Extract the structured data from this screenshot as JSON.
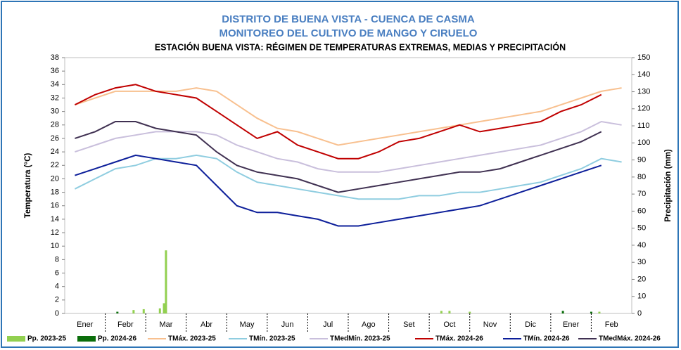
{
  "chart_data": {
    "type": "line",
    "title": "DISTRITO DE BUENA VISTA - CUENCA DE CASMA",
    "subtitle": "MONITOREO DEL CULTIVO DE MANGO Y CIRUELO",
    "subtitle2": "ESTACIÓN BUENA VISTA: RÉGIMEN DE TEMPERATURAS EXTREMAS, MEDIAS Y PRECIPITACIÓN",
    "ylabel": "Temperatura (°C)",
    "y2label": "Precipitación (mm)",
    "ylim": [
      0,
      38
    ],
    "yticks": [
      0,
      2,
      4,
      6,
      8,
      10,
      12,
      14,
      16,
      18,
      20,
      22,
      24,
      26,
      28,
      30,
      32,
      34,
      36,
      38
    ],
    "y2lim": [
      0,
      150
    ],
    "y2ticks": [
      0,
      10,
      20,
      30,
      40,
      50,
      60,
      70,
      80,
      90,
      100,
      110,
      120,
      130,
      140,
      150
    ],
    "xlim": [
      0,
      14
    ],
    "xticks": [
      {
        "value": 0.5,
        "label": "Ener"
      },
      {
        "value": 1.5,
        "label": "Febr"
      },
      {
        "value": 2.5,
        "label": "Mar"
      },
      {
        "value": 3.5,
        "label": "Abr"
      },
      {
        "value": 4.5,
        "label": "May"
      },
      {
        "value": 5.5,
        "label": "Jun"
      },
      {
        "value": 6.5,
        "label": "Jul"
      },
      {
        "value": 7.5,
        "label": "Ago"
      },
      {
        "value": 8.5,
        "label": "Set"
      },
      {
        "value": 9.5,
        "label": "Oct"
      },
      {
        "value": 10.5,
        "label": "Nov"
      },
      {
        "value": 11.5,
        "label": "Dic"
      },
      {
        "value": 12.5,
        "label": "Ener"
      },
      {
        "value": 13.5,
        "label": "Feb"
      }
    ],
    "x": [
      0.25,
      0.75,
      1.25,
      1.75,
      2.25,
      2.75,
      3.25,
      3.75,
      4.25,
      4.75,
      5.25,
      5.75,
      6.25,
      6.75,
      7.25,
      7.75,
      8.25,
      8.75,
      9.25,
      9.75,
      10.25,
      10.75,
      11.25,
      11.75,
      12.25,
      12.75,
      13.25,
      13.75
    ],
    "grid": false,
    "series": [
      {
        "name": "Pp. 2023-25",
        "type": "bar",
        "axis": "y2",
        "color": "#92d050",
        "x": [
          1.7,
          1.95,
          2.35,
          2.45,
          2.5,
          9.3,
          9.5,
          10.0,
          13.2
        ],
        "values": [
          2,
          2.5,
          3,
          6,
          37,
          1.5,
          1.5,
          1,
          1
        ]
      },
      {
        "name": "Pp. 2024-26",
        "type": "bar",
        "axis": "y2",
        "color": "#0b6e0b",
        "x": [
          1.3,
          12.3,
          13.0
        ],
        "values": [
          1,
          1.5,
          1
        ]
      },
      {
        "name": "TMáx. 2023-25",
        "type": "line",
        "color": "#f8c08f",
        "values": [
          31,
          32,
          33,
          33,
          33,
          33,
          33.5,
          33,
          31,
          29,
          27.5,
          27,
          26,
          25,
          25.5,
          26,
          26.5,
          27,
          27.5,
          28,
          28.5,
          29,
          29.5,
          30,
          31,
          32,
          33,
          33.5
        ]
      },
      {
        "name": "TMín. 2023-25",
        "type": "line",
        "color": "#8fcde0",
        "values": [
          18.5,
          20,
          21.5,
          22,
          23,
          23,
          23.5,
          23,
          21,
          19.5,
          19,
          18.5,
          18,
          17.5,
          17,
          17,
          17,
          17.5,
          17.5,
          18,
          18,
          18.5,
          19,
          19.5,
          20.5,
          21.5,
          23,
          22.5
        ]
      },
      {
        "name": "TMedMín. 2023-25",
        "type": "line",
        "color": "#c9bfdc",
        "values": [
          24,
          25,
          26,
          26.5,
          27,
          27,
          27,
          26.5,
          25,
          24,
          23,
          22.5,
          21.5,
          21,
          21,
          21,
          21.5,
          22,
          22.5,
          23,
          23.5,
          24,
          24.5,
          25,
          26,
          27,
          28.5,
          28
        ]
      },
      {
        "name": "TMáx. 2024-26",
        "type": "line",
        "color": "#c00000",
        "values": [
          31,
          32.5,
          33.5,
          34,
          33,
          32.5,
          32,
          30,
          28,
          26,
          27,
          25,
          24,
          23,
          23,
          24,
          25.5,
          26,
          27,
          28,
          27,
          27.5,
          28,
          28.5,
          30,
          31,
          32.5,
          null
        ]
      },
      {
        "name": "TMín. 2024-26",
        "type": "line",
        "color": "#0d1f9a",
        "values": [
          20.5,
          21.5,
          22.5,
          23.5,
          23,
          22.5,
          22,
          19,
          16,
          15,
          15,
          14.5,
          14,
          13,
          13,
          13.5,
          14,
          14.5,
          15,
          15.5,
          16,
          17,
          18,
          19,
          20,
          21,
          22,
          null
        ]
      },
      {
        "name": "TMedMáx. 2024-26",
        "type": "line",
        "color": "#403152",
        "values": [
          26,
          27,
          28.5,
          28.5,
          27.5,
          27,
          26.5,
          24,
          22,
          21,
          20.5,
          20,
          19,
          18,
          18.5,
          19,
          19.5,
          20,
          20.5,
          21,
          21,
          21.5,
          22.5,
          23.5,
          24.5,
          25.5,
          27,
          null
        ]
      }
    ]
  }
}
